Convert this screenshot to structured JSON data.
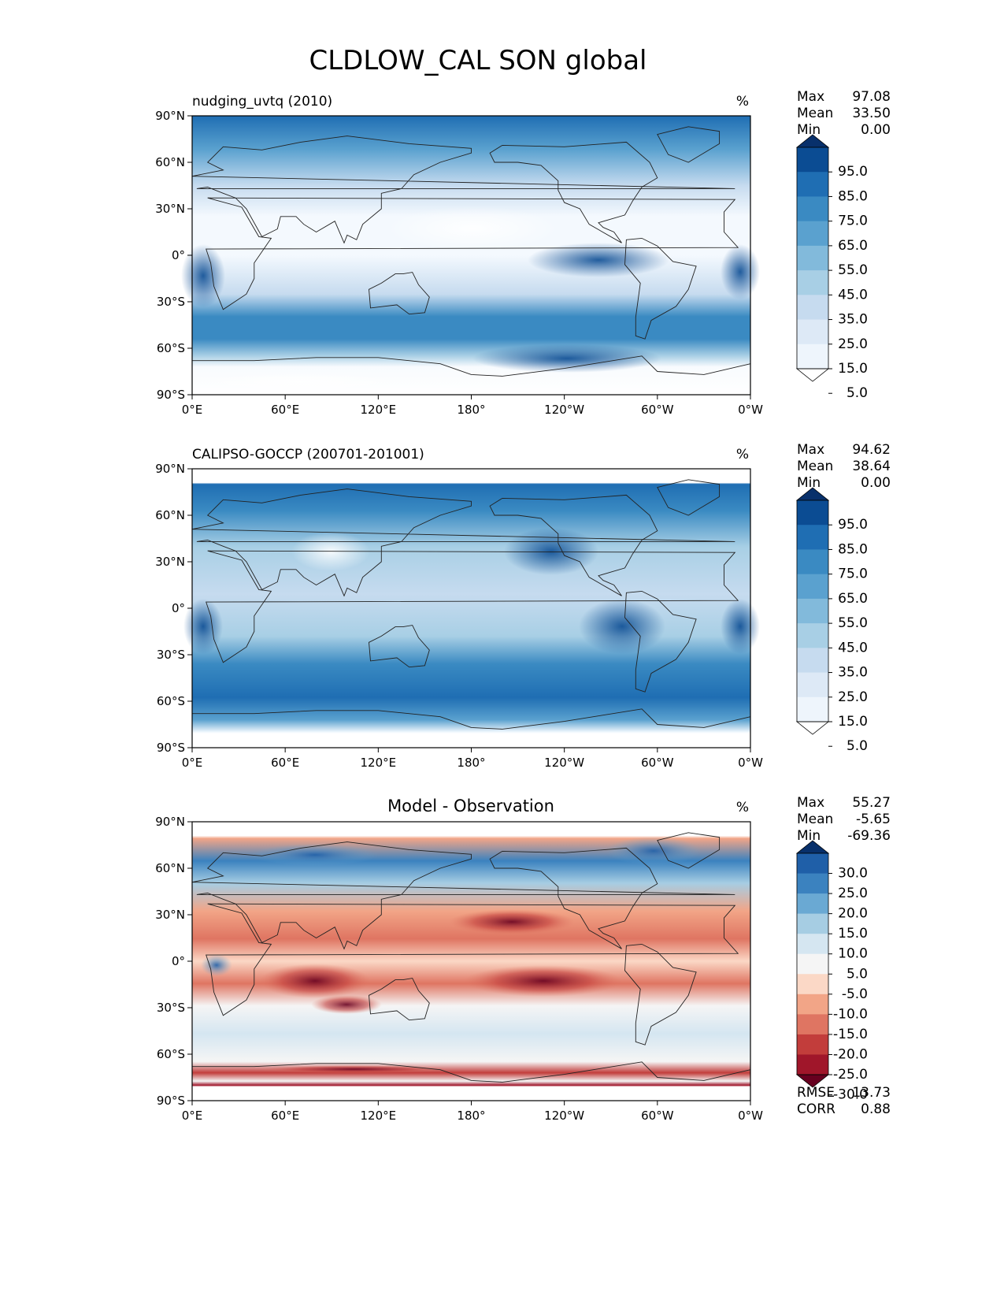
{
  "figure": {
    "title": "CLDLOW_CAL SON global"
  },
  "chart_data": [
    {
      "type": "heatmap",
      "panel": "model",
      "title_left": "nudging_uvtq (2010)",
      "title_center": "",
      "units": "%",
      "stats": {
        "labels": [
          "Max",
          "Mean",
          "Min"
        ],
        "values": [
          "97.08",
          "33.50",
          "0.00"
        ]
      },
      "colorbar": {
        "levels": [
          "95.0",
          "85.0",
          "75.0",
          "65.0",
          "55.0",
          "45.0",
          "35.0",
          "25.0",
          "15.0",
          "5.0"
        ],
        "colors": [
          "#08306b",
          "#0b4c93",
          "#1f6eb3",
          "#3a8ac2",
          "#5aa1cf",
          "#82badb",
          "#a8cfe5",
          "#c6dbef",
          "#dde9f6",
          "#eef5fc",
          "#ffffff"
        ]
      },
      "xticks": [
        "0°E",
        "60°E",
        "120°E",
        "180°",
        "120°W",
        "60°W",
        "0°W"
      ],
      "yticks": [
        "90°N",
        "60°N",
        "30°N",
        "0°",
        "30°S",
        "60°S",
        "90°S"
      ],
      "xlim": [
        0,
        360
      ],
      "ylim": [
        -90,
        90
      ]
    },
    {
      "type": "heatmap",
      "panel": "observation",
      "title_left": "CALIPSO-GOCCP (200701-201001)",
      "title_center": "",
      "units": "%",
      "stats": {
        "labels": [
          "Max",
          "Mean",
          "Min"
        ],
        "values": [
          "94.62",
          "38.64",
          "0.00"
        ]
      },
      "colorbar": {
        "levels": [
          "95.0",
          "85.0",
          "75.0",
          "65.0",
          "55.0",
          "45.0",
          "35.0",
          "25.0",
          "15.0",
          "5.0"
        ],
        "colors": [
          "#08306b",
          "#0b4c93",
          "#1f6eb3",
          "#3a8ac2",
          "#5aa1cf",
          "#82badb",
          "#a8cfe5",
          "#c6dbef",
          "#dde9f6",
          "#eef5fc",
          "#ffffff"
        ]
      },
      "xticks": [
        "0°E",
        "60°E",
        "120°E",
        "180°",
        "120°W",
        "60°W",
        "0°W"
      ],
      "yticks": [
        "90°N",
        "60°N",
        "30°N",
        "0°",
        "30°S",
        "60°S",
        "90°S"
      ],
      "xlim": [
        0,
        360
      ],
      "ylim": [
        -90,
        90
      ]
    },
    {
      "type": "heatmap",
      "panel": "difference",
      "title_left": "",
      "title_center": "Model - Observation",
      "units": "%",
      "stats": {
        "labels": [
          "Max",
          "Mean",
          "Min"
        ],
        "values": [
          "55.27",
          "-5.65",
          "-69.36"
        ]
      },
      "extra_stats": {
        "labels": [
          "RMSE",
          "CORR"
        ],
        "values": [
          "13.73",
          "0.88"
        ]
      },
      "colorbar": {
        "levels": [
          "30.0",
          "25.0",
          "20.0",
          "15.0",
          "10.0",
          "5.0",
          "-5.0",
          "-10.0",
          "-15.0",
          "-20.0",
          "-25.0",
          "-30.0"
        ],
        "colors": [
          "#08306b",
          "#1f5fa8",
          "#3b82bf",
          "#6aa9d3",
          "#a6cde3",
          "#d5e6f1",
          "#f5f5f5",
          "#fbd8c6",
          "#f2a587",
          "#df7562",
          "#c23d3b",
          "#a0162a",
          "#67001f"
        ]
      },
      "xticks": [
        "0°E",
        "60°E",
        "120°E",
        "180°",
        "120°W",
        "60°W",
        "0°W"
      ],
      "yticks": [
        "90°N",
        "60°N",
        "30°N",
        "0°",
        "30°S",
        "60°S",
        "90°S"
      ],
      "xlim": [
        0,
        360
      ],
      "ylim": [
        -90,
        90
      ]
    }
  ]
}
